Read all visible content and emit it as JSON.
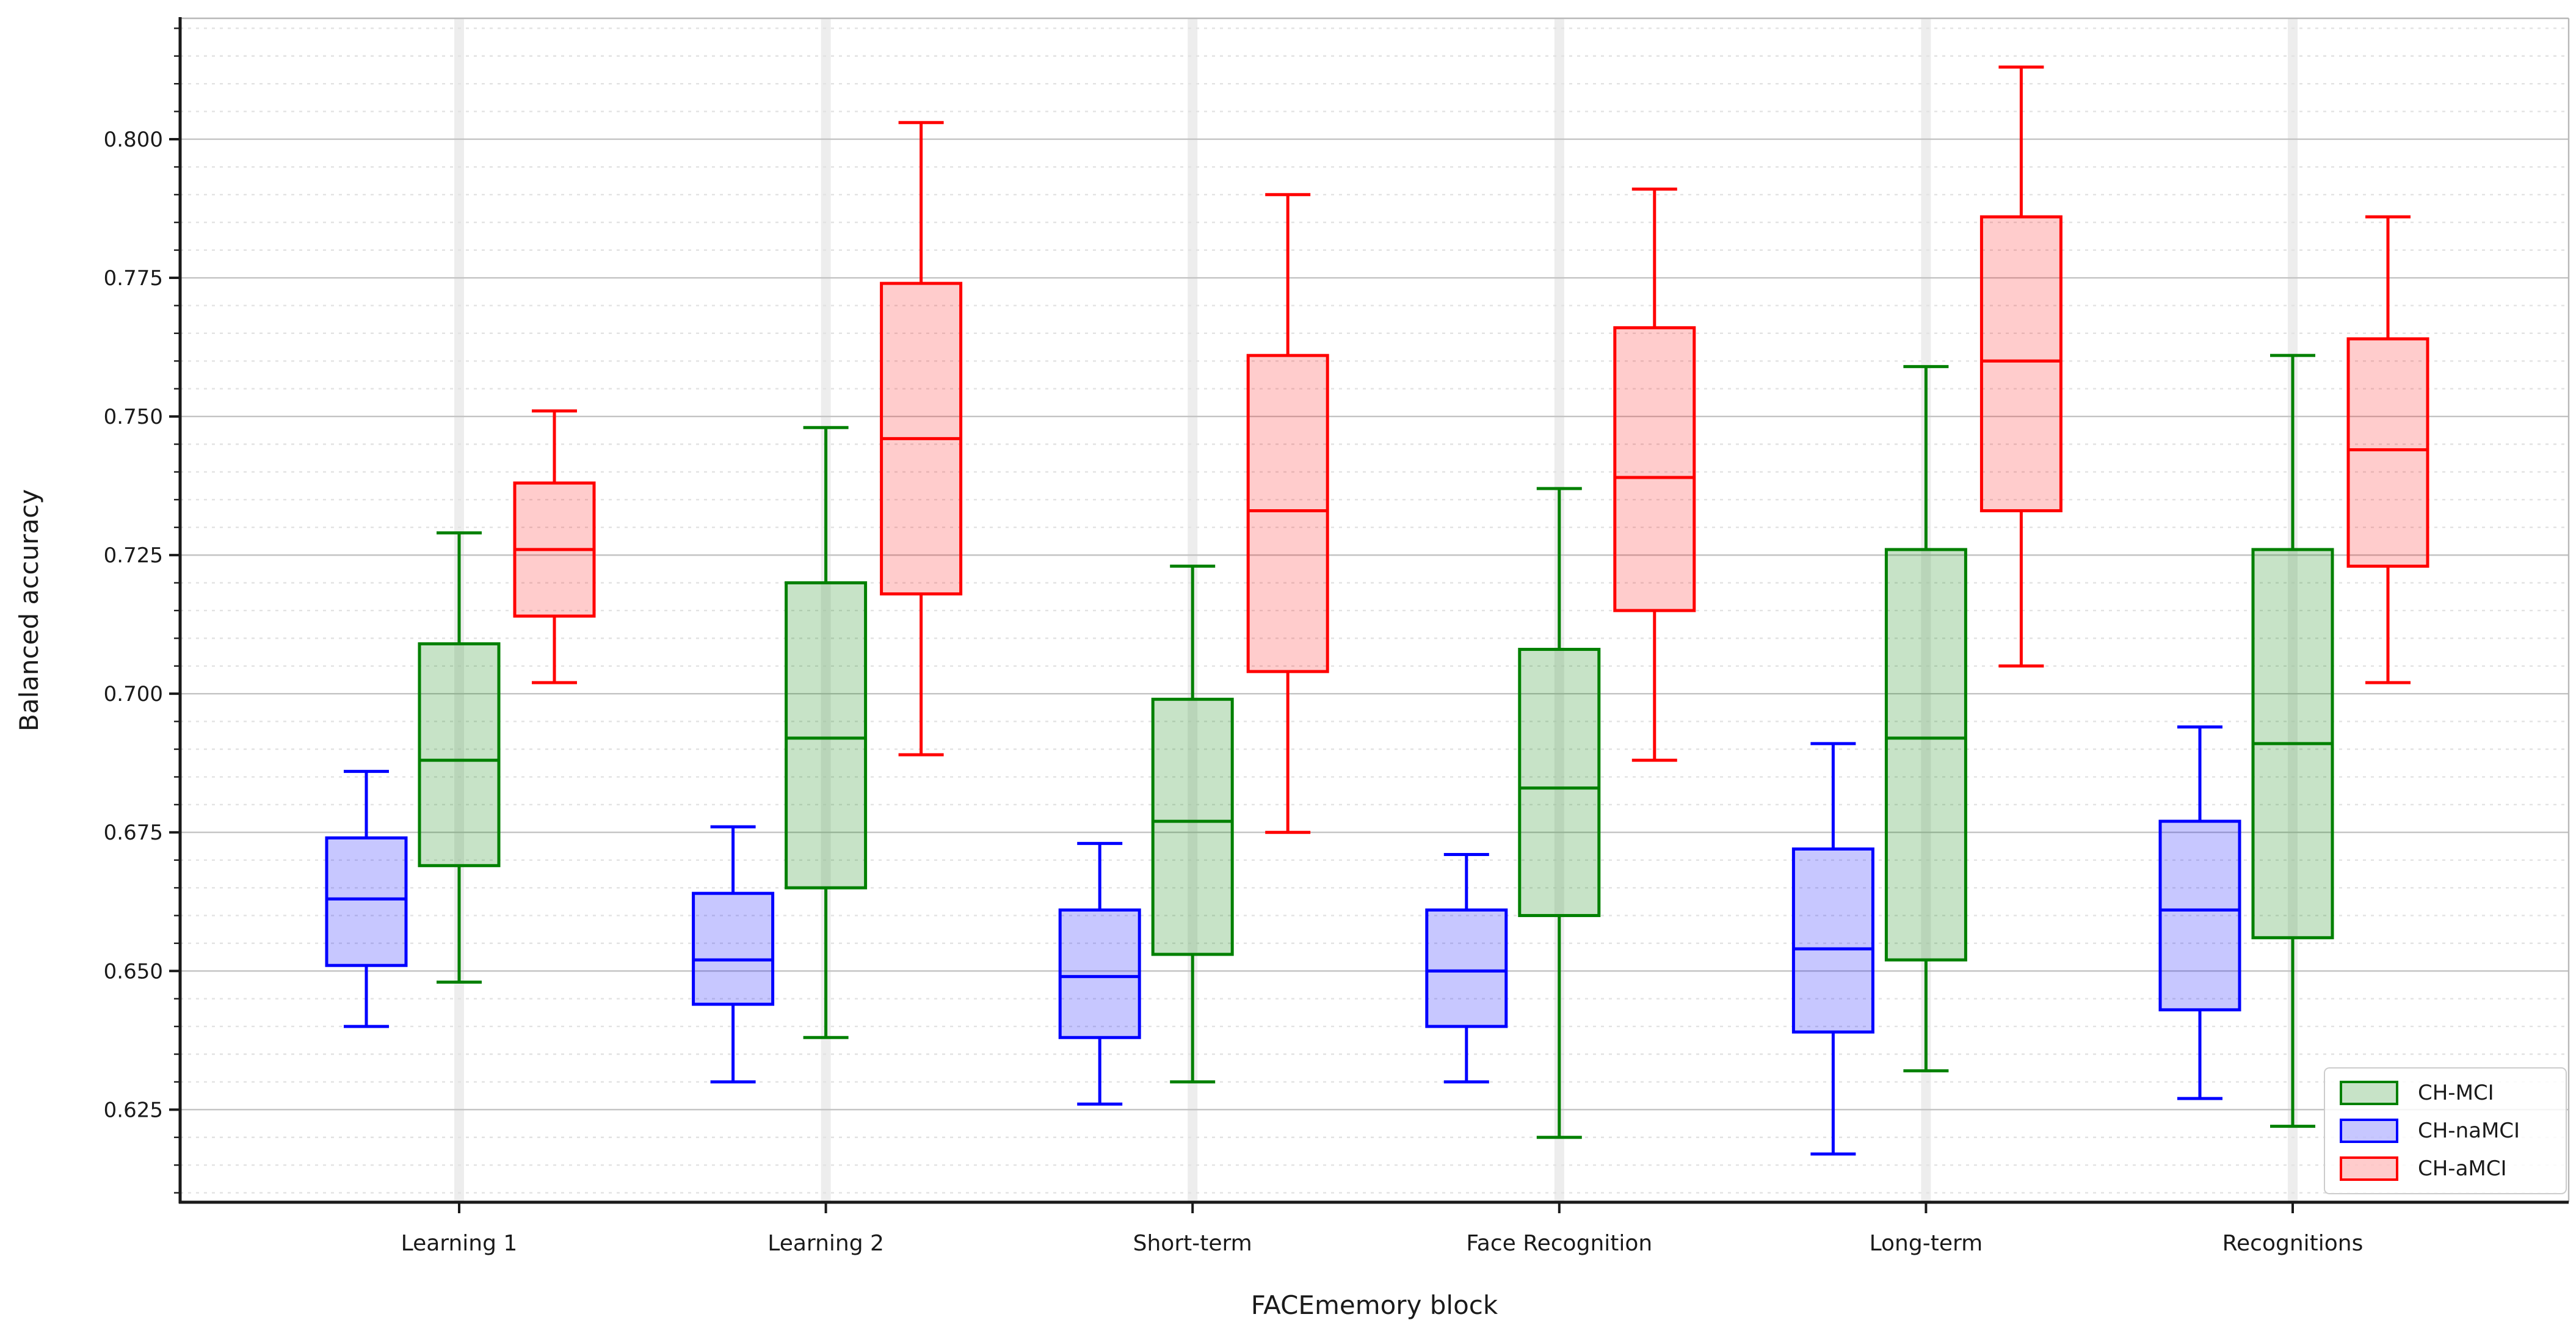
{
  "figure": {
    "background": "#ffffff"
  },
  "chart_data": {
    "type": "grouped_boxplot",
    "title": "",
    "xlabel": "FACEmemory block",
    "ylabel": "Balanced accuracy",
    "categories": [
      "Learning 1",
      "Learning 2",
      "Short-term",
      "Face Recognition",
      "Long-term",
      "Recognitions"
    ],
    "ylim": [
      0.6083,
      0.8218
    ],
    "y_major_ticks": [
      0.625,
      0.65,
      0.675,
      0.7,
      0.725,
      0.75,
      0.775,
      0.8
    ],
    "y_tick_labels": [
      "0.625",
      "0.650",
      "0.675",
      "0.700",
      "0.725",
      "0.750",
      "0.775",
      "0.800"
    ],
    "y_minor_step": 0.005,
    "y_minor_range": [
      0.61,
      0.82
    ],
    "grid": "horizontal major solid + minor dashed, faint vertical stripe at each category",
    "legend_position": "lower right",
    "legend_order": [
      "CH-MCI",
      "CH-naMCI",
      "CH-aMCI"
    ],
    "stats_format": [
      "whisker_low",
      "q1",
      "median",
      "q3",
      "whisker_high"
    ],
    "series": [
      {
        "name": "CH-naMCI",
        "color": "#0000ff",
        "fill": "rgba(0,0,255,0.22)",
        "position_in_group": "left",
        "values": [
          [
            0.64,
            0.651,
            0.663,
            0.674,
            0.686
          ],
          [
            0.63,
            0.644,
            0.652,
            0.664,
            0.676
          ],
          [
            0.626,
            0.638,
            0.649,
            0.661,
            0.673
          ],
          [
            0.63,
            0.64,
            0.65,
            0.661,
            0.671
          ],
          [
            0.617,
            0.639,
            0.654,
            0.672,
            0.691
          ],
          [
            0.627,
            0.643,
            0.661,
            0.677,
            0.694
          ]
        ]
      },
      {
        "name": "CH-MCI",
        "color": "#008000",
        "fill": "rgba(0,128,0,0.22)",
        "position_in_group": "center",
        "values": [
          [
            0.648,
            0.669,
            0.688,
            0.709,
            0.729
          ],
          [
            0.638,
            0.665,
            0.692,
            0.72,
            0.748
          ],
          [
            0.63,
            0.653,
            0.677,
            0.699,
            0.723
          ],
          [
            0.62,
            0.66,
            0.683,
            0.708,
            0.737
          ],
          [
            0.632,
            0.652,
            0.692,
            0.726,
            0.759
          ],
          [
            0.622,
            0.656,
            0.691,
            0.726,
            0.761
          ]
        ]
      },
      {
        "name": "CH-aMCI",
        "color": "#ff0000",
        "fill": "rgba(255,0,0,0.20)",
        "position_in_group": "right",
        "values": [
          [
            0.702,
            0.714,
            0.726,
            0.738,
            0.751
          ],
          [
            0.689,
            0.718,
            0.746,
            0.774,
            0.803
          ],
          [
            0.675,
            0.704,
            0.733,
            0.761,
            0.79
          ],
          [
            0.688,
            0.715,
            0.739,
            0.766,
            0.791
          ],
          [
            0.705,
            0.733,
            0.76,
            0.786,
            0.813
          ],
          [
            0.702,
            0.723,
            0.744,
            0.764,
            0.786
          ]
        ]
      }
    ]
  }
}
